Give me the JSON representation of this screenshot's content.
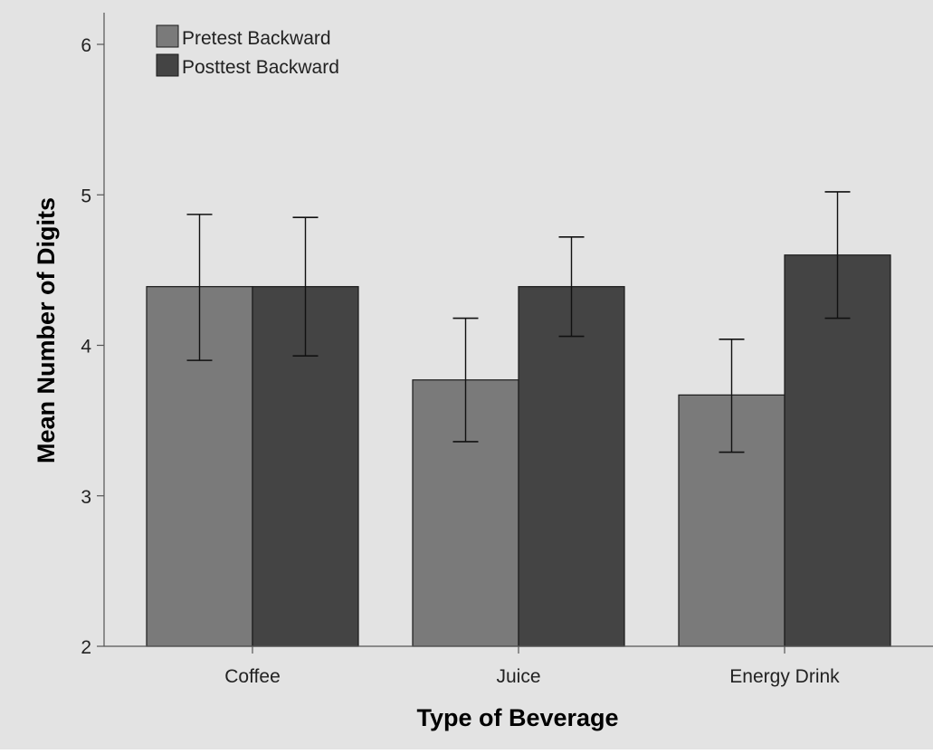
{
  "chart_data": {
    "type": "bar",
    "categories": [
      "Coffee",
      "Juice",
      "Energy Drink"
    ],
    "series": [
      {
        "name": "Pretest Backward",
        "values": [
          4.39,
          3.77,
          3.67
        ],
        "error_low": [
          3.9,
          3.36,
          3.29
        ],
        "error_high": [
          4.87,
          4.18,
          4.04
        ],
        "color": "#7a7a7a"
      },
      {
        "name": "Posttest Backward",
        "values": [
          4.39,
          4.39,
          4.6
        ],
        "error_low": [
          3.93,
          4.06,
          4.18
        ],
        "error_high": [
          4.85,
          4.72,
          5.02
        ],
        "color": "#444444"
      }
    ],
    "xlabel": "Type of Beverage",
    "ylabel": "Mean Number of Digits",
    "ylim": [
      2,
      6.2
    ],
    "yticks": [
      "2",
      "3",
      "4",
      "5",
      "6"
    ],
    "grid": false,
    "legend_position": "top-left",
    "background_color": "#e3e3e3",
    "outline_color": "#1a1a1a"
  }
}
